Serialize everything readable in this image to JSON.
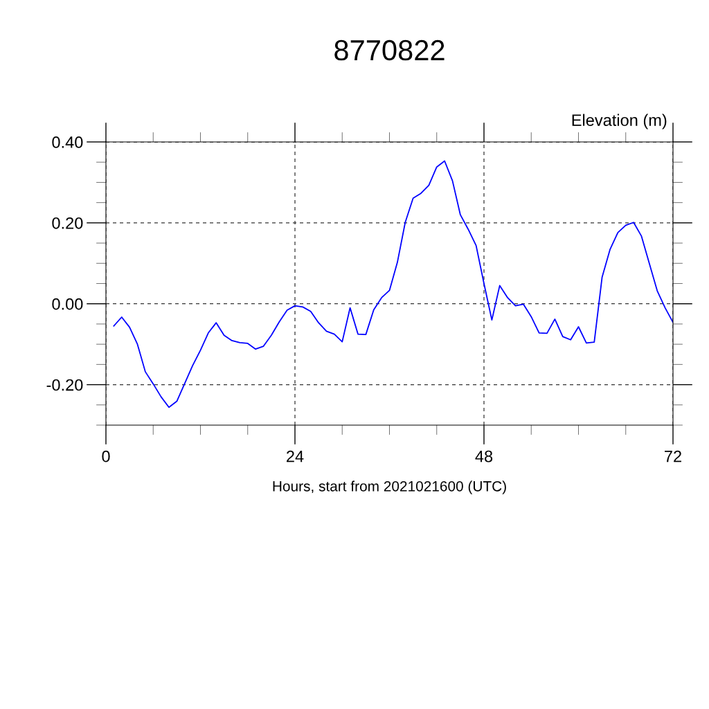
{
  "chart_data": {
    "type": "line",
    "title": "8770822",
    "xlabel": "Hours, start from 2021021600 (UTC)",
    "ylabel": "Elevation (m)",
    "x": [
      1,
      2,
      3,
      4,
      5,
      6,
      7,
      8,
      9,
      10,
      11,
      12,
      13,
      14,
      15,
      16,
      17,
      18,
      19,
      20,
      21,
      22,
      23,
      24,
      25,
      26,
      27,
      28,
      29,
      30,
      31,
      32,
      33,
      34,
      35,
      36,
      37,
      38,
      39,
      40,
      41,
      42,
      43,
      44,
      45,
      46,
      47,
      48,
      49,
      50,
      51,
      52,
      53,
      54,
      55,
      56,
      57,
      58,
      59,
      60,
      61,
      62,
      63,
      64,
      65,
      66,
      67,
      68,
      69,
      70,
      71,
      72
    ],
    "series": [
      {
        "color": "#0000ff",
        "values": [
          -0.055,
          -0.033,
          -0.058,
          -0.1,
          -0.168,
          -0.198,
          -0.23,
          -0.256,
          -0.241,
          -0.197,
          -0.153,
          -0.115,
          -0.072,
          -0.047,
          -0.078,
          -0.091,
          -0.096,
          -0.098,
          -0.112,
          -0.105,
          -0.078,
          -0.045,
          -0.016,
          -0.005,
          -0.008,
          -0.019,
          -0.047,
          -0.068,
          -0.075,
          -0.094,
          -0.01,
          -0.075,
          -0.076,
          -0.015,
          0.015,
          0.033,
          0.102,
          0.201,
          0.261,
          0.273,
          0.293,
          0.338,
          0.353,
          0.304,
          0.22,
          0.184,
          0.144,
          0.05,
          -0.04,
          0.045,
          0.015,
          -0.005,
          -0.001,
          -0.032,
          -0.072,
          -0.073,
          -0.038,
          -0.081,
          -0.089,
          -0.057,
          -0.097,
          -0.095,
          0.066,
          0.134,
          0.176,
          0.194,
          0.201,
          0.167,
          0.099,
          0.032,
          -0.01,
          -0.046
        ]
      }
    ],
    "xlim": [
      0,
      72
    ],
    "xticks": [
      0,
      24,
      48,
      72
    ],
    "ylim": [
      -0.3,
      0.4
    ],
    "yticks": [
      {
        "value": -0.2,
        "label": "-0.20"
      },
      {
        "value": 0,
        "label": "0.00"
      },
      {
        "value": 0.2,
        "label": "0.20"
      },
      {
        "value": 0.4,
        "label": "0.40"
      }
    ],
    "grid": true,
    "marker": "none",
    "line_style": "solid",
    "legend": false
  }
}
